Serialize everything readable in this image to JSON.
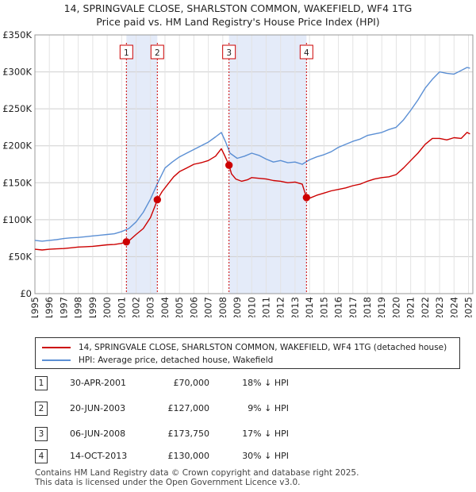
{
  "chart_data": {
    "type": "line",
    "title_line1": "14, SPRINGVALE CLOSE, SHARLSTON COMMON, WAKEFIELD, WF4 1TG",
    "title_line2": "Price paid vs. HM Land Registry's House Price Index (HPI)",
    "xlim": [
      1995,
      2025.3
    ],
    "ylim": [
      0,
      350000
    ],
    "y_ticks": [
      {
        "value": 0,
        "label": "£0"
      },
      {
        "value": 50000,
        "label": "£50K"
      },
      {
        "value": 100000,
        "label": "£100K"
      },
      {
        "value": 150000,
        "label": "£150K"
      },
      {
        "value": 200000,
        "label": "£200K"
      },
      {
        "value": 250000,
        "label": "£250K"
      },
      {
        "value": 300000,
        "label": "£300K"
      },
      {
        "value": 350000,
        "label": "£350K"
      }
    ],
    "x_ticks": [
      "1995",
      "1996",
      "1997",
      "1998",
      "1999",
      "2000",
      "2001",
      "2002",
      "2003",
      "2004",
      "2005",
      "2006",
      "2007",
      "2008",
      "2009",
      "2010",
      "2011",
      "2012",
      "2013",
      "2014",
      "2015",
      "2016",
      "2017",
      "2018",
      "2019",
      "2020",
      "2021",
      "2022",
      "2023",
      "2024",
      "2025"
    ],
    "grid": true,
    "shaded_periods": [
      [
        2001.33,
        2003.47
      ],
      [
        2008.43,
        2013.79
      ]
    ],
    "series": [
      {
        "name": "14, SPRINGVALE CLOSE, SHARLSTON COMMON, WAKEFIELD, WF4 1TG (detached house)",
        "color": "#cc0000",
        "x": [
          1995,
          1995.5,
          1996,
          1996.5,
          1997,
          1997.5,
          1998,
          1998.5,
          1999,
          1999.5,
          2000,
          2000.5,
          2001,
          2001.33,
          2001.6,
          2002,
          2002.5,
          2003,
          2003.3,
          2003.47,
          2003.8,
          2004.2,
          2004.6,
          2005,
          2005.5,
          2006,
          2006.5,
          2007,
          2007.5,
          2007.9,
          2008.1,
          2008.43,
          2008.6,
          2008.9,
          2009.3,
          2009.7,
          2010,
          2010.5,
          2011,
          2011.5,
          2012,
          2012.5,
          2013,
          2013.5,
          2013.79,
          2014,
          2014.5,
          2015,
          2015.5,
          2016,
          2016.5,
          2017,
          2017.5,
          2018,
          2018.5,
          2019,
          2019.5,
          2020,
          2020.5,
          2021,
          2021.5,
          2022,
          2022.5,
          2023,
          2023.5,
          2024,
          2024.5,
          2024.9,
          2025.1
        ],
        "values": [
          60000,
          59000,
          60000,
          60500,
          61000,
          62000,
          63000,
          63500,
          64000,
          65000,
          66000,
          66500,
          68000,
          70000,
          73000,
          80000,
          88000,
          103000,
          118000,
          127000,
          138000,
          148000,
          158000,
          165000,
          170000,
          175000,
          177000,
          180000,
          186000,
          196000,
          188000,
          173750,
          162000,
          155000,
          152000,
          154000,
          157000,
          156000,
          155000,
          153000,
          152000,
          150000,
          151000,
          148000,
          130000,
          129000,
          133000,
          136000,
          139000,
          141000,
          143000,
          146000,
          148000,
          152000,
          155000,
          157000,
          158000,
          161000,
          170000,
          180000,
          190000,
          202000,
          210000,
          210000,
          208000,
          211000,
          210000,
          218000,
          216000
        ]
      },
      {
        "name": "HPI: Average price, detached house, Wakefield",
        "color": "#5b8fd4",
        "x": [
          1995,
          1995.5,
          1996,
          1996.5,
          1997,
          1997.5,
          1998,
          1998.5,
          1999,
          1999.5,
          2000,
          2000.5,
          2001,
          2001.5,
          2002,
          2002.5,
          2003,
          2003.5,
          2004,
          2004.5,
          2005,
          2005.5,
          2006,
          2006.5,
          2007,
          2007.5,
          2007.9,
          2008.2,
          2008.5,
          2009,
          2009.5,
          2010,
          2010.5,
          2011,
          2011.5,
          2012,
          2012.5,
          2013,
          2013.5,
          2014,
          2014.5,
          2015,
          2015.5,
          2016,
          2016.5,
          2017,
          2017.5,
          2018,
          2018.5,
          2019,
          2019.5,
          2020,
          2020.5,
          2021,
          2021.5,
          2022,
          2022.5,
          2023,
          2023.5,
          2024,
          2024.5,
          2024.9,
          2025.1
        ],
        "values": [
          72000,
          71000,
          72000,
          73000,
          74500,
          75500,
          76000,
          77000,
          78000,
          79000,
          80000,
          81000,
          84000,
          88000,
          97000,
          110000,
          128000,
          150000,
          170000,
          178000,
          185000,
          190000,
          195000,
          200000,
          205000,
          212000,
          218000,
          205000,
          190000,
          183000,
          186000,
          190000,
          187000,
          182000,
          178000,
          180000,
          177000,
          178000,
          175000,
          181000,
          185000,
          188000,
          192000,
          198000,
          202000,
          206000,
          209000,
          214000,
          216000,
          218000,
          222000,
          225000,
          235000,
          248000,
          262000,
          278000,
          290000,
          300000,
          298000,
          297000,
          302000,
          306000,
          305000
        ]
      }
    ],
    "sale_markers": [
      {
        "label": "1",
        "x": 2001.33,
        "price": 70000
      },
      {
        "label": "2",
        "x": 2003.47,
        "price": 127000
      },
      {
        "label": "3",
        "x": 2008.43,
        "price": 173750
      },
      {
        "label": "4",
        "x": 2013.79,
        "price": 130000
      }
    ]
  },
  "legend": {
    "property": "14, SPRINGVALE CLOSE, SHARLSTON COMMON, WAKEFIELD, WF4 1TG (detached house)",
    "hpi": "HPI: Average price, detached house, Wakefield"
  },
  "transactions": [
    {
      "num": "1",
      "date": "30-APR-2001",
      "price": "£70,000",
      "hpi": "18% ↓ HPI"
    },
    {
      "num": "2",
      "date": "20-JUN-2003",
      "price": "£127,000",
      "hpi": "9% ↓ HPI"
    },
    {
      "num": "3",
      "date": "06-JUN-2008",
      "price": "£173,750",
      "hpi": "17% ↓ HPI"
    },
    {
      "num": "4",
      "date": "14-OCT-2013",
      "price": "£130,000",
      "hpi": "30% ↓ HPI"
    }
  ],
  "footer": {
    "line1": "Contains HM Land Registry data © Crown copyright and database right 2025.",
    "line2": "This data is licensed under the Open Government Licence v3.0."
  }
}
